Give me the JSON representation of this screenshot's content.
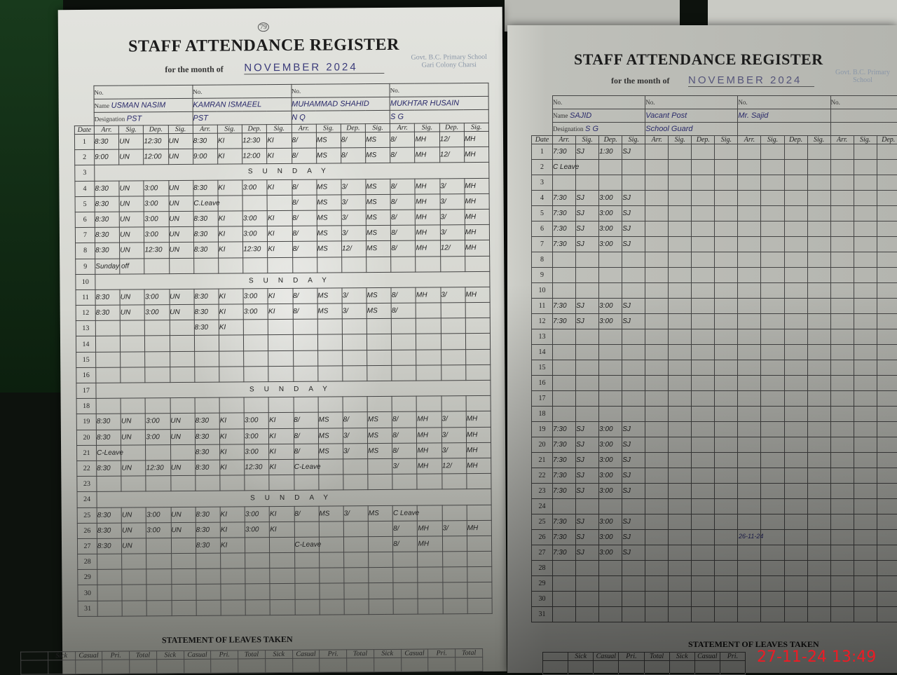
{
  "timestamp": "27-11-24  13:49",
  "colors": {
    "ink": "#2a2a6a",
    "timestamp": "#ee1b24"
  },
  "left_page": {
    "page_number": "79",
    "title": "STAFF ATTENDANCE REGISTER",
    "month_label": "for the month of",
    "month_value": "NOVEMBER 2024",
    "school": "Govt. B.C. Primary School Gari Colony Charsi",
    "col_headers": [
      "Arr.",
      "Sig.",
      "Dep.",
      "Sig."
    ],
    "date_header": "Date",
    "no_label": "No.",
    "name_label": "Name",
    "designation_label": "Designation",
    "staff": [
      {
        "name": "USMAN NASIM",
        "designation": "PST"
      },
      {
        "name": "KAMRAN ISMAEEL",
        "designation": "PST"
      },
      {
        "name": "MUHAMMAD SHAHID",
        "designation": "N Q"
      },
      {
        "name": "MUKHTAR HUSAIN",
        "designation": "S G"
      }
    ],
    "rows": [
      {
        "day": "1",
        "cells": [
          "8:30",
          "UN",
          "12:30",
          "UN",
          "8:30",
          "KI",
          "12:30",
          "KI",
          "8/",
          "MS",
          "8/",
          "MS",
          "8/",
          "MH",
          "12/",
          "MH"
        ]
      },
      {
        "day": "2",
        "cells": [
          "9:00",
          "UN",
          "12:00",
          "UN",
          "9:00",
          "KI",
          "12:00",
          "KI",
          "8/",
          "MS",
          "8/",
          "MS",
          "8/",
          "MH",
          "12/",
          "MH"
        ]
      },
      {
        "day": "3",
        "note": "SUNDAY"
      },
      {
        "day": "4",
        "cells": [
          "8:30",
          "UN",
          "3:00",
          "UN",
          "8:30",
          "KI",
          "3:00",
          "KI",
          "8/",
          "MS",
          "3/",
          "MS",
          "8/",
          "MH",
          "3/",
          "MH"
        ]
      },
      {
        "day": "5",
        "cells": [
          "8:30",
          "UN",
          "3:00",
          "UN",
          "C.Leave",
          "",
          "",
          "",
          "8/",
          "MS",
          "3/",
          "MS",
          "8/",
          "MH",
          "3/",
          "MH"
        ]
      },
      {
        "day": "6",
        "cells": [
          "8:30",
          "UN",
          "3:00",
          "UN",
          "8:30",
          "KI",
          "3:00",
          "KI",
          "8/",
          "MS",
          "3/",
          "MS",
          "8/",
          "MH",
          "3/",
          "MH"
        ]
      },
      {
        "day": "7",
        "cells": [
          "8:30",
          "UN",
          "3:00",
          "UN",
          "8:30",
          "KI",
          "3:00",
          "KI",
          "8/",
          "MS",
          "3/",
          "MS",
          "8/",
          "MH",
          "3/",
          "MH"
        ]
      },
      {
        "day": "8",
        "cells": [
          "8:30",
          "UN",
          "12:30",
          "UN",
          "8:30",
          "KI",
          "12:30",
          "KI",
          "8/",
          "MS",
          "12/",
          "MS",
          "8/",
          "MH",
          "12/",
          "MH"
        ]
      },
      {
        "day": "9",
        "cells": [
          "Sunday off",
          "",
          "",
          "",
          "",
          "",
          "",
          "",
          "",
          "",
          "",
          "",
          "",
          "",
          "",
          ""
        ]
      },
      {
        "day": "10",
        "note": "SUNDAY"
      },
      {
        "day": "11",
        "cells": [
          "8:30",
          "UN",
          "3:00",
          "UN",
          "8:30",
          "KI",
          "3:00",
          "KI",
          "8/",
          "MS",
          "3/",
          "MS",
          "8/",
          "MH",
          "3/",
          "MH"
        ]
      },
      {
        "day": "12",
        "cells": [
          "8:30",
          "UN",
          "3:00",
          "UN",
          "8:30",
          "KI",
          "3:00",
          "KI",
          "8/",
          "MS",
          "3/",
          "MS",
          "8/",
          "",
          "",
          ""
        ]
      },
      {
        "day": "13",
        "cells": [
          "",
          "",
          "",
          "",
          "8:30",
          "KI",
          "",
          "",
          "",
          "",
          "",
          "",
          "",
          "",
          "",
          ""
        ]
      },
      {
        "day": "14"
      },
      {
        "day": "15"
      },
      {
        "day": "16"
      },
      {
        "day": "17",
        "note": "SUNDAY"
      },
      {
        "day": "18"
      },
      {
        "day": "19",
        "cells": [
          "8:30",
          "UN",
          "3:00",
          "UN",
          "8:30",
          "KI",
          "3:00",
          "KI",
          "8/",
          "MS",
          "8/",
          "MS",
          "8/",
          "MH",
          "3/",
          "MH"
        ]
      },
      {
        "day": "20",
        "cells": [
          "8:30",
          "UN",
          "3:00",
          "UN",
          "8:30",
          "KI",
          "3:00",
          "KI",
          "8/",
          "MS",
          "3/",
          "MS",
          "8/",
          "MH",
          "3/",
          "MH"
        ]
      },
      {
        "day": "21",
        "cells": [
          "C-Leave",
          "",
          "",
          "",
          "8:30",
          "KI",
          "3:00",
          "KI",
          "8/",
          "MS",
          "3/",
          "MS",
          "8/",
          "MH",
          "3/",
          "MH"
        ]
      },
      {
        "day": "22",
        "cells": [
          "8:30",
          "UN",
          "12:30",
          "UN",
          "8:30",
          "KI",
          "12:30",
          "KI",
          "C-Leave",
          "",
          "",
          "",
          "3/",
          "MH",
          "12/",
          "MH"
        ]
      },
      {
        "day": "23"
      },
      {
        "day": "24",
        "note": "SUNDAY"
      },
      {
        "day": "25",
        "cells": [
          "8:30",
          "UN",
          "3:00",
          "UN",
          "8:30",
          "KI",
          "3:00",
          "KI",
          "8/",
          "MS",
          "3/",
          "MS",
          "C Leave",
          "",
          "",
          ""
        ]
      },
      {
        "day": "26",
        "cells": [
          "8:30",
          "UN",
          "3:00",
          "UN",
          "8:30",
          "KI",
          "3:00",
          "KI",
          "",
          "",
          "",
          "",
          "8/",
          "MH",
          "3/",
          "MH"
        ]
      },
      {
        "day": "27",
        "cells": [
          "8:30",
          "UN",
          "",
          "",
          "8:30",
          "KI",
          "",
          "",
          "C-Leave",
          "",
          "",
          "",
          "8/",
          "MH",
          "",
          ""
        ]
      },
      {
        "day": "28"
      },
      {
        "day": "29"
      },
      {
        "day": "30"
      },
      {
        "day": "31"
      }
    ],
    "leaves_title": "STATEMENT OF LEAVES TAKEN",
    "leave_headers": [
      "Sick",
      "Casual",
      "Pri.",
      "Total",
      "Sick",
      "Casual",
      "Pri.",
      "Total",
      "Sick",
      "Casual",
      "Pri.",
      "Total",
      "Sick",
      "Casual",
      "Pri.",
      "Total"
    ]
  },
  "right_page": {
    "title": "STAFF ATTENDANCE REGISTER",
    "month_label": "for the month of",
    "month_value": "NOVEMBER 2024",
    "school": "Govt. B.C. Primary School",
    "col_headers": [
      "Arr.",
      "Sig.",
      "Dep.",
      "Sig."
    ],
    "date_header": "Date",
    "no_label": "No.",
    "name_label": "Name",
    "designation_label": "Designation",
    "staff": [
      {
        "name": "SAJID",
        "designation": "S G"
      },
      {
        "name": "Vacant Post",
        "designation": "School Guard"
      },
      {
        "name": "Mr. Sajid",
        "designation": ""
      },
      {
        "name": "",
        "designation": ""
      }
    ],
    "rows": [
      {
        "day": "1",
        "cells": [
          "7:30",
          "SJ",
          "1:30",
          "SJ"
        ]
      },
      {
        "day": "2",
        "cells": [
          "C Leave"
        ]
      },
      {
        "day": "3"
      },
      {
        "day": "4",
        "cells": [
          "7:30",
          "SJ",
          "3:00",
          "SJ"
        ]
      },
      {
        "day": "5",
        "cells": [
          "7:30",
          "SJ",
          "3:00",
          "SJ"
        ]
      },
      {
        "day": "6",
        "cells": [
          "7:30",
          "SJ",
          "3:00",
          "SJ"
        ]
      },
      {
        "day": "7",
        "cells": [
          "7:30",
          "SJ",
          "3:00",
          "SJ"
        ]
      },
      {
        "day": "8"
      },
      {
        "day": "9"
      },
      {
        "day": "10"
      },
      {
        "day": "11",
        "cells": [
          "7:30",
          "SJ",
          "3:00",
          "SJ"
        ]
      },
      {
        "day": "12",
        "cells": [
          "7:30",
          "SJ",
          "3:00",
          "SJ"
        ]
      },
      {
        "day": "13"
      },
      {
        "day": "14"
      },
      {
        "day": "15"
      },
      {
        "day": "16"
      },
      {
        "day": "17"
      },
      {
        "day": "18"
      },
      {
        "day": "19",
        "cells": [
          "7:30",
          "SJ",
          "3:00",
          "SJ"
        ]
      },
      {
        "day": "20",
        "cells": [
          "7:30",
          "SJ",
          "3:00",
          "SJ"
        ]
      },
      {
        "day": "21",
        "cells": [
          "7:30",
          "SJ",
          "3:00",
          "SJ"
        ]
      },
      {
        "day": "22",
        "cells": [
          "7:30",
          "SJ",
          "3:00",
          "SJ"
        ]
      },
      {
        "day": "23",
        "cells": [
          "7:30",
          "SJ",
          "3:00",
          "SJ"
        ]
      },
      {
        "day": "24"
      },
      {
        "day": "25",
        "cells": [
          "7:30",
          "SJ",
          "3:00",
          "SJ"
        ]
      },
      {
        "day": "26",
        "cells": [
          "7:30",
          "SJ",
          "3:00",
          "SJ"
        ]
      },
      {
        "day": "27",
        "cells": [
          "7:30",
          "SJ",
          "3:00",
          "SJ"
        ]
      },
      {
        "day": "28"
      },
      {
        "day": "29"
      },
      {
        "day": "30"
      },
      {
        "day": "31"
      }
    ],
    "leaves_title": "STATEMENT OF LEAVES TAKEN",
    "leave_headers": [
      "Sick",
      "Casual",
      "Pri.",
      "Total",
      "Sick",
      "Casual",
      "Pri."
    ],
    "signature_date": "26-11-24"
  }
}
